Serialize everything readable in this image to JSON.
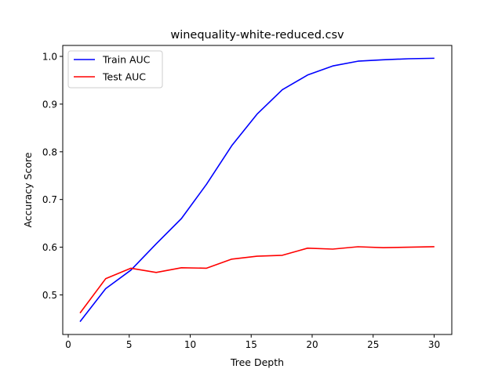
{
  "chart_data": {
    "type": "line",
    "title": "winequality-white-reduced.csv",
    "xlabel": "Tree Depth",
    "ylabel": "Accuracy Score",
    "xlim": [
      -0.45,
      31.45
    ],
    "ylim": [
      0.417,
      1.023
    ],
    "xticks": [
      0,
      5,
      10,
      15,
      20,
      25,
      30
    ],
    "yticks": [
      0.5,
      0.6,
      0.7,
      0.8,
      0.9,
      1.0
    ],
    "xtick_labels": [
      "0",
      "5",
      "10",
      "15",
      "20",
      "25",
      "30"
    ],
    "ytick_labels": [
      "0.5",
      "0.6",
      "0.7",
      "0.8",
      "0.9",
      "1.0"
    ],
    "x": [
      1.0,
      3.07,
      5.14,
      7.21,
      9.28,
      11.34,
      13.41,
      15.48,
      17.55,
      19.62,
      21.69,
      23.76,
      25.83,
      27.9,
      29.97
    ],
    "series": [
      {
        "name": "Train AUC",
        "color": "#0000ff",
        "values": [
          0.445,
          0.513,
          0.552,
          0.607,
          0.66,
          0.732,
          0.813,
          0.879,
          0.93,
          0.961,
          0.98,
          0.99,
          0.993,
          0.995,
          0.996
        ]
      },
      {
        "name": "Test AUC",
        "color": "#ff0000",
        "values": [
          0.463,
          0.534,
          0.556,
          0.547,
          0.557,
          0.556,
          0.575,
          0.581,
          0.583,
          0.598,
          0.596,
          0.601,
          0.599,
          0.6,
          0.601
        ]
      }
    ],
    "grid": false,
    "legend_position": "top-left"
  }
}
